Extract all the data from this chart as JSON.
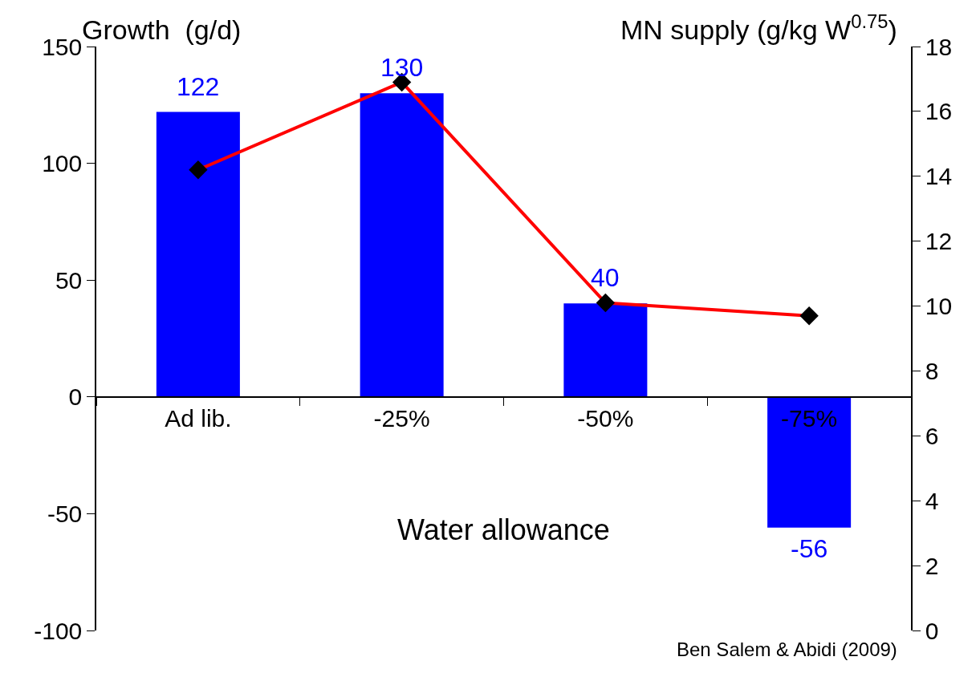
{
  "chart_data": {
    "type": "bar",
    "ylabel": "Growth  (g/d)",
    "y2label": "MN supply (g/kg W$^{0.75}$)",
    "xlabel": "Water allowance",
    "categories": [
      "Ad lib.",
      "-25%",
      "-50%",
      "-75%"
    ],
    "series": [
      {
        "color": "#0000ff",
        "values": [
          122,
          130,
          40,
          -56
        ],
        "value_labels": [
          "122",
          "130",
          "40",
          "-56"
        ]
      },
      {
        "type": "line",
        "axis": "y2",
        "color": "#ff0000",
        "marker": "diamond",
        "values": [
          14.2,
          16.9,
          10.1,
          9.7
        ]
      }
    ],
    "ylim": [
      -100,
      150
    ],
    "yticks": [
      -100,
      -50,
      0,
      50,
      100,
      150
    ],
    "y2lim": [
      0,
      18
    ],
    "y2ticks": [
      0,
      2,
      4,
      6,
      8,
      10,
      12,
      14,
      16,
      18
    ],
    "grid": false,
    "annotations": [
      "Ben Salem & Abidi (2009)"
    ]
  }
}
